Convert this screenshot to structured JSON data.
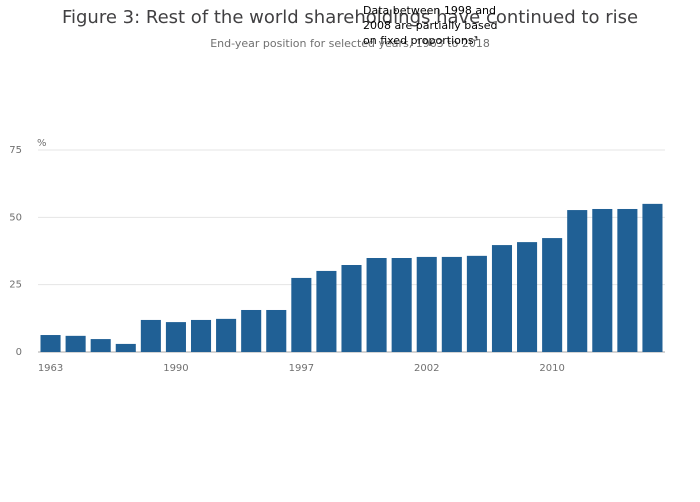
{
  "chart_data": {
    "type": "bar",
    "title": "Figure 3: Rest of the world shareholdings have continued to rise",
    "subtitle": "End-year position for selected years, 1963 to 2018",
    "annotation": [
      "Data between 1998 and",
      "2008 are partially based",
      "on fixed proportions³"
    ],
    "y_label": "%",
    "categories": [
      "1963",
      null,
      null,
      null,
      null,
      "1990",
      null,
      null,
      null,
      null,
      "1997",
      null,
      null,
      null,
      null,
      "2002",
      null,
      null,
      null,
      null,
      "2010",
      null,
      null,
      null,
      null
    ],
    "values": [
      6.3,
      6.0,
      4.8,
      3.0,
      11.9,
      11.1,
      11.9,
      12.3,
      15.6,
      15.6,
      27.5,
      30.1,
      32.3,
      34.9,
      34.9,
      35.3,
      35.3,
      35.7,
      39.7,
      40.8,
      42.3,
      52.7,
      53.1,
      53.1,
      55.0
    ],
    "color": "#206095",
    "ylim": [
      0,
      75
    ],
    "yticks": [
      0,
      25,
      50,
      75
    ],
    "grid": true
  }
}
